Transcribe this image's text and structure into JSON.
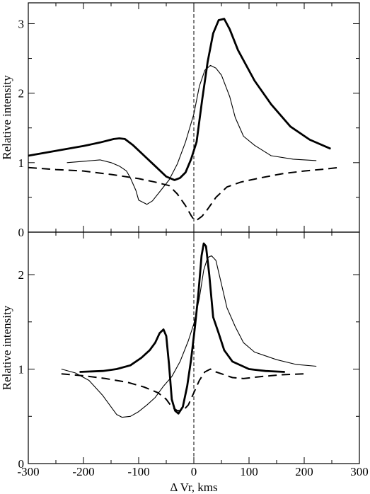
{
  "chart_data": [
    {
      "type": "line",
      "panel": "top",
      "ylabel": "Relative intensity",
      "xlabel": "",
      "xlim": [
        -300,
        300
      ],
      "ylim": [
        0,
        3.3
      ],
      "x_ticks": [
        "-300",
        "-200",
        "-100",
        "0",
        "100",
        "200",
        "300"
      ],
      "y_ticks": [
        "0",
        "1",
        "2",
        "3"
      ],
      "grid": false,
      "legend": "none",
      "vertical_line_x": 0,
      "series": [
        {
          "style": "thick",
          "x": [
            -300,
            -250,
            -200,
            -170,
            -145,
            -135,
            -125,
            -110,
            -90,
            -70,
            -50,
            -35,
            -25,
            -15,
            -5,
            5,
            15,
            25,
            35,
            45,
            55,
            65,
            80,
            110,
            140,
            175,
            210,
            248
          ],
          "y": [
            1.1,
            1.17,
            1.24,
            1.29,
            1.34,
            1.35,
            1.34,
            1.25,
            1.1,
            0.95,
            0.8,
            0.75,
            0.78,
            0.86,
            1.05,
            1.3,
            1.9,
            2.45,
            2.86,
            3.05,
            3.07,
            2.92,
            2.62,
            2.18,
            1.84,
            1.52,
            1.33,
            1.2
          ]
        },
        {
          "style": "thin",
          "x": [
            -230,
            -200,
            -170,
            -150,
            -135,
            -122,
            -115,
            -105,
            -100,
            -85,
            -75,
            -60,
            -45,
            -30,
            -15,
            0,
            10,
            20,
            30,
            40,
            50,
            65,
            75,
            90,
            110,
            140,
            180,
            222
          ],
          "y": [
            1.0,
            1.02,
            1.04,
            1.0,
            0.95,
            0.88,
            0.78,
            0.6,
            0.46,
            0.4,
            0.45,
            0.6,
            0.75,
            0.98,
            1.3,
            1.7,
            2.1,
            2.33,
            2.4,
            2.36,
            2.26,
            1.95,
            1.65,
            1.38,
            1.25,
            1.1,
            1.05,
            1.03
          ]
        },
        {
          "style": "dashed",
          "x": [
            -300,
            -250,
            -200,
            -150,
            -100,
            -70,
            -45,
            -30,
            -15,
            -5,
            0,
            5,
            15,
            25,
            40,
            60,
            85,
            120,
            160,
            200,
            240,
            262
          ],
          "y": [
            0.93,
            0.9,
            0.88,
            0.83,
            0.77,
            0.72,
            0.67,
            0.55,
            0.38,
            0.24,
            0.18,
            0.17,
            0.23,
            0.33,
            0.5,
            0.65,
            0.72,
            0.78,
            0.84,
            0.88,
            0.91,
            0.93
          ]
        }
      ]
    },
    {
      "type": "line",
      "panel": "bottom",
      "ylabel": "Relative intensity",
      "xlabel": "Δ Vr, kms",
      "xlim": [
        -300,
        300
      ],
      "ylim": [
        0,
        2.45
      ],
      "x_ticks": [
        "-300",
        "-200",
        "-100",
        "0",
        "100",
        "200",
        "300"
      ],
      "y_ticks": [
        "0",
        "1",
        "2"
      ],
      "grid": false,
      "legend": "none",
      "vertical_line_x": 0,
      "series": [
        {
          "style": "thick",
          "x": [
            -207,
            -165,
            -140,
            -115,
            -95,
            -80,
            -70,
            -62,
            -55,
            -50,
            -45,
            -40,
            -34,
            -28,
            -20,
            -12,
            -5,
            2,
            8,
            14,
            18,
            22,
            28,
            35,
            45,
            55,
            70,
            100,
            130,
            165
          ],
          "y": [
            0.97,
            0.98,
            1.0,
            1.04,
            1.12,
            1.2,
            1.28,
            1.38,
            1.42,
            1.35,
            1.05,
            0.68,
            0.56,
            0.53,
            0.6,
            0.82,
            1.1,
            1.45,
            1.78,
            2.2,
            2.33,
            2.3,
            2.0,
            1.55,
            1.38,
            1.2,
            1.08,
            1.0,
            0.98,
            0.97
          ]
        },
        {
          "style": "thin",
          "x": [
            -240,
            -215,
            -190,
            -165,
            -150,
            -140,
            -130,
            -115,
            -100,
            -85,
            -70,
            -55,
            -40,
            -25,
            -10,
            0,
            10,
            18,
            25,
            32,
            40,
            50,
            60,
            75,
            90,
            110,
            150,
            185,
            222
          ],
          "y": [
            1.0,
            0.96,
            0.88,
            0.72,
            0.6,
            0.52,
            0.49,
            0.5,
            0.55,
            0.62,
            0.7,
            0.82,
            0.92,
            1.08,
            1.3,
            1.48,
            1.75,
            2.05,
            2.18,
            2.2,
            2.15,
            1.9,
            1.65,
            1.45,
            1.28,
            1.18,
            1.1,
            1.05,
            1.03
          ]
        },
        {
          "style": "dashed",
          "x": [
            -240,
            -200,
            -160,
            -120,
            -90,
            -65,
            -50,
            -40,
            -30,
            -20,
            -10,
            0,
            10,
            20,
            30,
            40,
            55,
            70,
            90,
            120,
            160,
            200
          ],
          "y": [
            0.95,
            0.93,
            0.9,
            0.86,
            0.81,
            0.75,
            0.68,
            0.6,
            0.56,
            0.56,
            0.62,
            0.75,
            0.88,
            0.97,
            1.0,
            0.97,
            0.94,
            0.91,
            0.9,
            0.92,
            0.94,
            0.95
          ]
        }
      ]
    }
  ]
}
